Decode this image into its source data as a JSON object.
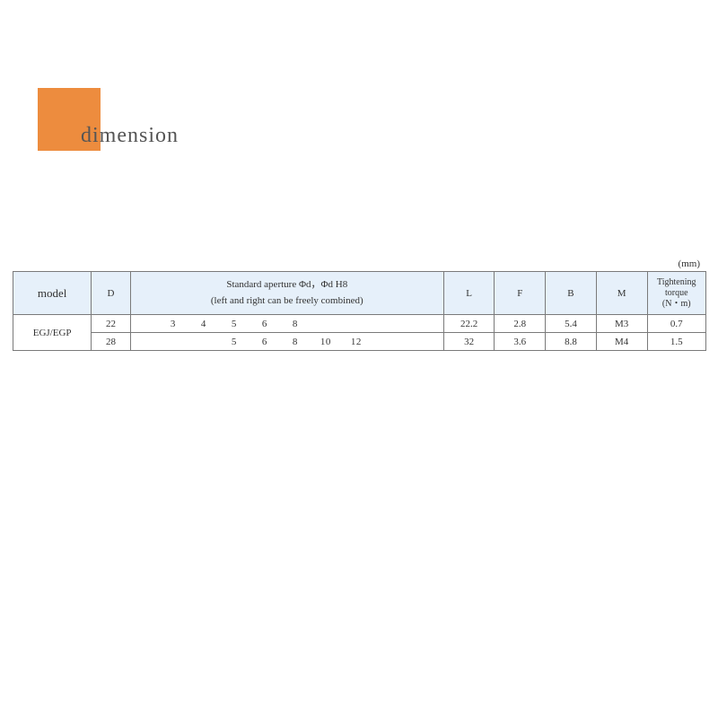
{
  "title": "dimension",
  "unit_label": "(mm)",
  "header_box_color": "#ed8c3e",
  "table": {
    "header_bg": "#e6f0fa",
    "border_color": "#7a7a7a",
    "columns": {
      "model": "model",
      "D": "D",
      "aperture_line1": "Standard aperture Φd，Φd H8",
      "aperture_line2": "(left and right can be freely combined)",
      "L": "L",
      "F": "F",
      "B": "B",
      "M": "M",
      "torque_line1": "Tightening",
      "torque_line2": "torque",
      "torque_line3": "(N・m)"
    },
    "model_value": "EGJ/EGP",
    "rows": [
      {
        "D": "22",
        "ap": [
          "3",
          "4",
          "5",
          "6",
          "8",
          "",
          ""
        ],
        "L": "22.2",
        "F": "2.8",
        "B": "5.4",
        "M": "M3",
        "T": "0.7"
      },
      {
        "D": "28",
        "ap": [
          "",
          "",
          "5",
          "6",
          "8",
          "10",
          "12"
        ],
        "L": "32",
        "F": "3.6",
        "B": "8.8",
        "M": "M4",
        "T": "1.5"
      }
    ]
  }
}
